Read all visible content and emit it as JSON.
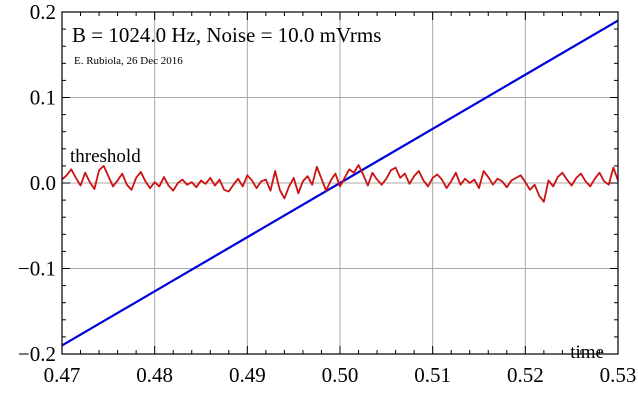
{
  "chart_data": {
    "type": "line",
    "title": "",
    "xlabel": "",
    "ylabel": "",
    "xlim": [
      0.47,
      0.53
    ],
    "ylim": [
      -0.2,
      0.2
    ],
    "grid": true,
    "x_ticks": [
      0.47,
      0.48,
      0.49,
      0.5,
      0.51,
      0.52,
      0.53
    ],
    "x_tick_labels": [
      "0.47",
      "0.48",
      "0.49",
      "0.50",
      "0.51",
      "0.52",
      "0.53"
    ],
    "y_ticks": [
      -0.2,
      -0.1,
      0.0,
      0.1,
      0.2
    ],
    "y_tick_labels": [
      "−0.2",
      "−0.1",
      "0.0",
      "0.1",
      "0.2"
    ],
    "annotations": {
      "bandwidth_noise": "B = 1024.0 Hz,   Noise = 10.0 mVrms",
      "credit": "E. Rubiola, 26 Dec 2016",
      "threshold_label": "threshold",
      "time_label": "time"
    },
    "series": [
      {
        "color": "#0000dd",
        "x": [
          0.47,
          0.53
        ],
        "y": [
          -0.19,
          0.19
        ]
      },
      {
        "color": "#cc1111",
        "x": [
          0.47,
          0.4705,
          0.471,
          0.4715,
          0.472,
          0.4725,
          0.473,
          0.4735,
          0.474,
          0.4745,
          0.475,
          0.4755,
          0.476,
          0.4765,
          0.477,
          0.4775,
          0.478,
          0.4785,
          0.479,
          0.4795,
          0.48,
          0.4805,
          0.481,
          0.4815,
          0.482,
          0.4825,
          0.483,
          0.4835,
          0.484,
          0.4845,
          0.485,
          0.4855,
          0.486,
          0.4865,
          0.487,
          0.4875,
          0.488,
          0.4885,
          0.489,
          0.4895,
          0.49,
          0.4905,
          0.491,
          0.4915,
          0.492,
          0.4925,
          0.493,
          0.4935,
          0.494,
          0.4945,
          0.495,
          0.4955,
          0.496,
          0.4965,
          0.497,
          0.4975,
          0.498,
          0.4985,
          0.499,
          0.4995,
          0.5,
          0.5005,
          0.501,
          0.5015,
          0.502,
          0.5025,
          0.503,
          0.5035,
          0.504,
          0.5045,
          0.505,
          0.5055,
          0.506,
          0.5065,
          0.507,
          0.5075,
          0.508,
          0.5085,
          0.509,
          0.5095,
          0.51,
          0.5105,
          0.511,
          0.5115,
          0.512,
          0.5125,
          0.513,
          0.5135,
          0.514,
          0.5145,
          0.515,
          0.5155,
          0.516,
          0.5165,
          0.517,
          0.5175,
          0.518,
          0.5185,
          0.519,
          0.5195,
          0.52,
          0.5205,
          0.521,
          0.5215,
          0.522,
          0.5225,
          0.523,
          0.5235,
          0.524,
          0.5245,
          0.525,
          0.5255,
          0.526,
          0.5265,
          0.527,
          0.5275,
          0.528,
          0.5285,
          0.529,
          0.5295,
          0.53
        ],
        "y": [
          0.004,
          0.009,
          0.016,
          0.006,
          -0.003,
          0.012,
          0.001,
          -0.007,
          0.015,
          0.02,
          0.008,
          -0.004,
          0.003,
          0.011,
          -0.002,
          -0.008,
          0.006,
          0.013,
          0.002,
          -0.006,
          0.001,
          -0.004,
          0.007,
          -0.003,
          -0.009,
          0.0,
          0.004,
          -0.002,
          0.001,
          -0.005,
          0.003,
          -0.001,
          0.006,
          -0.003,
          0.004,
          -0.008,
          -0.01,
          -0.002,
          0.005,
          -0.004,
          0.009,
          0.003,
          -0.006,
          0.002,
          0.004,
          -0.009,
          0.014,
          -0.008,
          -0.018,
          -0.004,
          0.006,
          -0.012,
          0.002,
          0.008,
          -0.002,
          0.019,
          0.005,
          -0.009,
          0.003,
          0.011,
          -0.004,
          0.006,
          0.016,
          0.012,
          0.021,
          0.01,
          -0.003,
          0.012,
          0.004,
          -0.002,
          0.005,
          0.015,
          0.018,
          0.006,
          0.011,
          -0.001,
          0.008,
          0.014,
          0.003,
          -0.004,
          0.006,
          0.01,
          0.004,
          -0.006,
          0.002,
          0.012,
          -0.002,
          0.005,
          0.0,
          0.004,
          -0.006,
          0.014,
          0.007,
          -0.002,
          0.005,
          0.002,
          -0.005,
          0.003,
          0.006,
          0.009,
          0.001,
          -0.008,
          -0.002,
          -0.015,
          -0.022,
          0.003,
          -0.004,
          0.007,
          0.012,
          0.004,
          -0.003,
          0.006,
          0.011,
          0.002,
          -0.004,
          0.005,
          0.012,
          0.002,
          -0.002,
          0.018,
          0.003
        ]
      }
    ]
  }
}
